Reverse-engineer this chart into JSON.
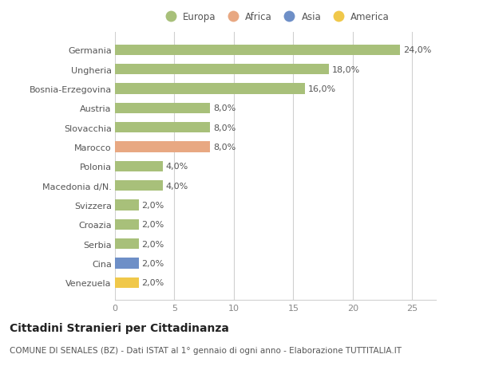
{
  "categories": [
    "Venezuela",
    "Cina",
    "Serbia",
    "Croazia",
    "Svizzera",
    "Macedonia d/N.",
    "Polonia",
    "Marocco",
    "Slovacchia",
    "Austria",
    "Bosnia-Erzegovina",
    "Ungheria",
    "Germania"
  ],
  "values": [
    2.0,
    2.0,
    2.0,
    2.0,
    2.0,
    4.0,
    4.0,
    8.0,
    8.0,
    8.0,
    16.0,
    18.0,
    24.0
  ],
  "colors": [
    "#f0c84a",
    "#6e8fc7",
    "#a8c07a",
    "#a8c07a",
    "#a8c07a",
    "#a8c07a",
    "#a8c07a",
    "#e8a882",
    "#a8c07a",
    "#a8c07a",
    "#a8c07a",
    "#a8c07a",
    "#a8c07a"
  ],
  "bar_labels": [
    "2,0%",
    "2,0%",
    "2,0%",
    "2,0%",
    "2,0%",
    "4,0%",
    "4,0%",
    "8,0%",
    "8,0%",
    "8,0%",
    "16,0%",
    "18,0%",
    "24,0%"
  ],
  "legend_labels": [
    "Europa",
    "Africa",
    "Asia",
    "America"
  ],
  "legend_colors": [
    "#a8c07a",
    "#e8a882",
    "#6e8fc7",
    "#f0c84a"
  ],
  "title": "Cittadini Stranieri per Cittadinanza",
  "subtitle": "COMUNE DI SENALES (BZ) - Dati ISTAT al 1° gennaio di ogni anno - Elaborazione TUTTITALIA.IT",
  "xlim": [
    0,
    27
  ],
  "xticks": [
    0,
    5,
    10,
    15,
    20,
    25
  ],
  "background_color": "#ffffff",
  "grid_color": "#d0d0d0",
  "bar_height": 0.55,
  "title_fontsize": 10,
  "subtitle_fontsize": 7.5,
  "label_fontsize": 8,
  "tick_fontsize": 8,
  "legend_fontsize": 8.5
}
